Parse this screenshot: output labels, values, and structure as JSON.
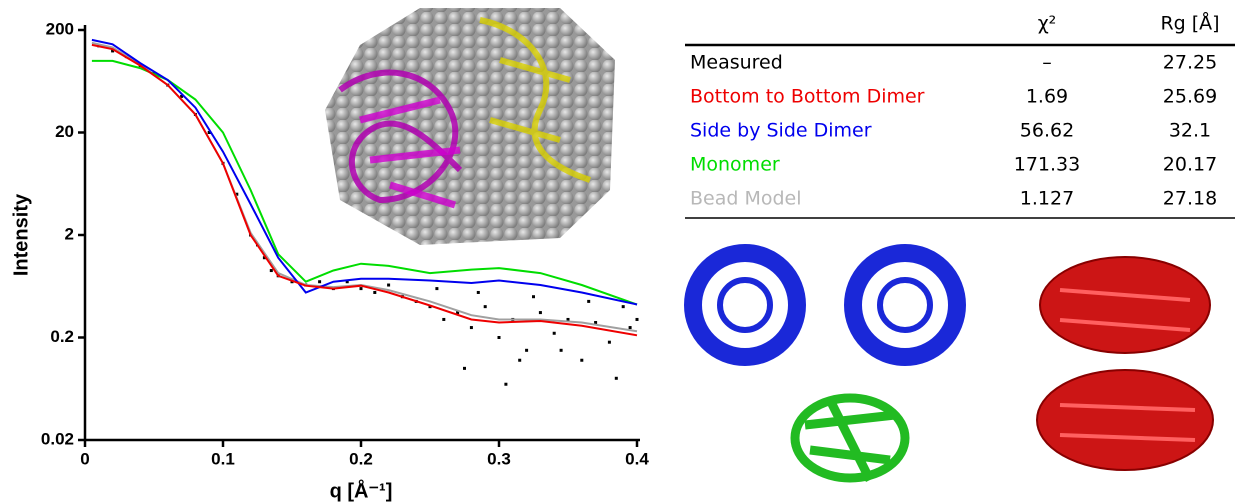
{
  "chart_data": {
    "type": "line",
    "x_label": "q [Å⁻¹]",
    "y_label": "Intensity",
    "xlim": [
      0,
      0.4
    ],
    "xticks": [
      0,
      0.1,
      0.2,
      0.3,
      0.4
    ],
    "ylim": [
      0.02,
      200
    ],
    "yticks": [
      0.02,
      0.2,
      2,
      20,
      200
    ],
    "y_scale": "log",
    "x": [
      0.005,
      0.02,
      0.04,
      0.06,
      0.08,
      0.1,
      0.12,
      0.14,
      0.16,
      0.18,
      0.2,
      0.22,
      0.25,
      0.28,
      0.3,
      0.33,
      0.36,
      0.4
    ],
    "series": [
      {
        "color": "#a0a0a0",
        "values": [
          150,
          135,
          92,
          58,
          30,
          10,
          2.1,
          0.85,
          0.65,
          0.62,
          0.65,
          0.58,
          0.45,
          0.33,
          0.3,
          0.3,
          0.28,
          0.23
        ]
      },
      {
        "color": "#00dd00",
        "values": [
          100,
          100,
          85,
          65,
          42,
          20,
          5.5,
          1.3,
          0.7,
          0.9,
          1.05,
          1.0,
          0.85,
          0.92,
          0.95,
          0.85,
          0.65,
          0.42
        ]
      },
      {
        "color": "#0000ee",
        "values": [
          160,
          145,
          95,
          65,
          35,
          13,
          4,
          1.2,
          0.55,
          0.7,
          0.75,
          0.75,
          0.72,
          0.68,
          0.72,
          0.65,
          0.55,
          0.42
        ]
      },
      {
        "color": "#ee0000",
        "values": [
          143,
          130,
          90,
          58,
          30,
          10,
          2,
          0.8,
          0.64,
          0.6,
          0.64,
          0.55,
          0.41,
          0.3,
          0.28,
          0.29,
          0.26,
          0.21
        ]
      }
    ],
    "scatter": {
      "color": "#000000",
      "x": [
        0.01,
        0.02,
        0.03,
        0.04,
        0.05,
        0.06,
        0.07,
        0.08,
        0.09,
        0.1,
        0.11,
        0.12,
        0.125,
        0.13,
        0.135,
        0.14,
        0.15,
        0.16,
        0.17,
        0.18,
        0.19,
        0.2,
        0.21,
        0.22,
        0.23,
        0.24,
        0.25,
        0.26,
        0.27,
        0.28,
        0.29,
        0.3,
        0.31,
        0.32,
        0.33,
        0.34,
        0.35,
        0.36,
        0.37,
        0.38,
        0.39,
        0.4,
        0.255,
        0.275,
        0.305,
        0.325,
        0.345,
        0.365,
        0.385,
        0.395,
        0.285,
        0.315
      ],
      "y": [
        140,
        125,
        110,
        90,
        75,
        58,
        45,
        30,
        20,
        10,
        5,
        2,
        1.6,
        1.2,
        0.9,
        0.8,
        0.7,
        0.65,
        0.7,
        0.6,
        0.7,
        0.6,
        0.55,
        0.65,
        0.5,
        0.45,
        0.4,
        0.3,
        0.35,
        0.25,
        0.4,
        0.2,
        0.3,
        0.15,
        0.35,
        0.22,
        0.3,
        0.12,
        0.28,
        0.18,
        0.4,
        0.3,
        0.6,
        0.1,
        0.07,
        0.5,
        0.15,
        0.45,
        0.08,
        0.25,
        0.55,
        0.12
      ]
    }
  },
  "table": {
    "header": [
      "χ²",
      "Rg [Å]"
    ],
    "rows": [
      {
        "label": "Measured",
        "color": "#000000",
        "chi2": "–",
        "rg": 27.25
      },
      {
        "label": "Bottom to Bottom Dimer",
        "color": "#ee0000",
        "chi2": 1.69,
        "rg": 25.69
      },
      {
        "label": "Side by Side Dimer",
        "color": "#0000ee",
        "chi2": 56.62,
        "rg": 32.1
      },
      {
        "label": "Monomer",
        "color": "#00dd00",
        "chi2": 171.33,
        "rg": 20.17
      },
      {
        "label": "Bead Model",
        "color": "#b8b8b8",
        "chi2": 1.127,
        "rg": 27.18
      }
    ]
  }
}
